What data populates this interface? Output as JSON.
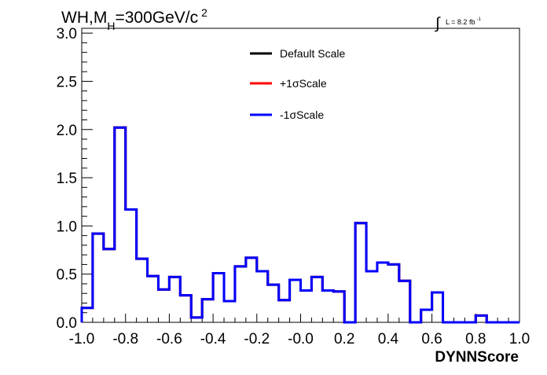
{
  "chart_data": {
    "type": "line",
    "step": true,
    "title": {
      "base": "WH,M",
      "sub": "H",
      "mid": "=300GeV/c",
      "sup": "2"
    },
    "lumi": {
      "sym": "∫",
      "text": "L = 8.2 fb",
      "sup": "-1"
    },
    "xlabel": "DYNNScore",
    "ylabel": "",
    "xlim": [
      -1.0,
      1.0
    ],
    "ylim": [
      0.0,
      3.05
    ],
    "xticks": [
      -1.0,
      -0.8,
      -0.6,
      -0.4,
      -0.2,
      0.0,
      0.2,
      0.4,
      0.6,
      0.8,
      1.0
    ],
    "xtick_labels": [
      "-1.0",
      "-0.8",
      "-0.6",
      "-0.4",
      "-0.2",
      "-0.0",
      "0.2",
      "0.4",
      "0.6",
      "0.8",
      "1.0"
    ],
    "yticks": [
      0.0,
      0.5,
      1.0,
      1.5,
      2.0,
      2.5,
      3.0
    ],
    "ytick_labels": [
      "0.0",
      "0.5",
      "1.0",
      "1.5",
      "2.0",
      "2.5",
      "3.0"
    ],
    "bin_edges": [
      -1.0,
      -0.95,
      -0.9,
      -0.85,
      -0.8,
      -0.75,
      -0.7,
      -0.65,
      -0.6,
      -0.55,
      -0.5,
      -0.45,
      -0.4,
      -0.35,
      -0.3,
      -0.25,
      -0.2,
      -0.15,
      -0.1,
      -0.05,
      0.0,
      0.05,
      0.1,
      0.15,
      0.2,
      0.25,
      0.3,
      0.35,
      0.4,
      0.45,
      0.5,
      0.55,
      0.6,
      0.65,
      0.7,
      0.75,
      0.8,
      0.85,
      0.9,
      0.95,
      1.0
    ],
    "series": [
      {
        "name": "Default Scale",
        "color": "#000000",
        "values": [
          0.15,
          0.92,
          0.76,
          2.02,
          1.17,
          0.66,
          0.48,
          0.34,
          0.47,
          0.28,
          0.05,
          0.24,
          0.51,
          0.22,
          0.58,
          0.67,
          0.53,
          0.39,
          0.23,
          0.44,
          0.33,
          0.47,
          0.33,
          0.32,
          0.0,
          1.03,
          0.53,
          0.62,
          0.6,
          0.43,
          0.0,
          0.13,
          0.31,
          0.0,
          0.0,
          0.0,
          0.07,
          0.0,
          0.0,
          0.0
        ]
      },
      {
        "name": "+1σScale",
        "color": "#ff0000",
        "values": [
          0.15,
          0.92,
          0.76,
          2.02,
          1.17,
          0.66,
          0.48,
          0.34,
          0.47,
          0.28,
          0.05,
          0.24,
          0.51,
          0.22,
          0.58,
          0.67,
          0.53,
          0.39,
          0.23,
          0.44,
          0.33,
          0.47,
          0.33,
          0.32,
          0.0,
          1.03,
          0.53,
          0.62,
          0.6,
          0.43,
          0.0,
          0.13,
          0.31,
          0.0,
          0.0,
          0.0,
          0.07,
          0.0,
          0.0,
          0.0
        ]
      },
      {
        "name": "-1σScale",
        "color": "#0000ff",
        "values": [
          0.15,
          0.92,
          0.76,
          2.02,
          1.17,
          0.66,
          0.48,
          0.34,
          0.47,
          0.28,
          0.05,
          0.24,
          0.51,
          0.22,
          0.58,
          0.67,
          0.53,
          0.39,
          0.23,
          0.44,
          0.33,
          0.47,
          0.33,
          0.32,
          0.0,
          1.03,
          0.53,
          0.62,
          0.6,
          0.43,
          0.0,
          0.13,
          0.31,
          0.0,
          0.0,
          0.0,
          0.07,
          0.0,
          0.0,
          0.0
        ]
      }
    ],
    "legend_position": "top-center",
    "grid": false
  }
}
